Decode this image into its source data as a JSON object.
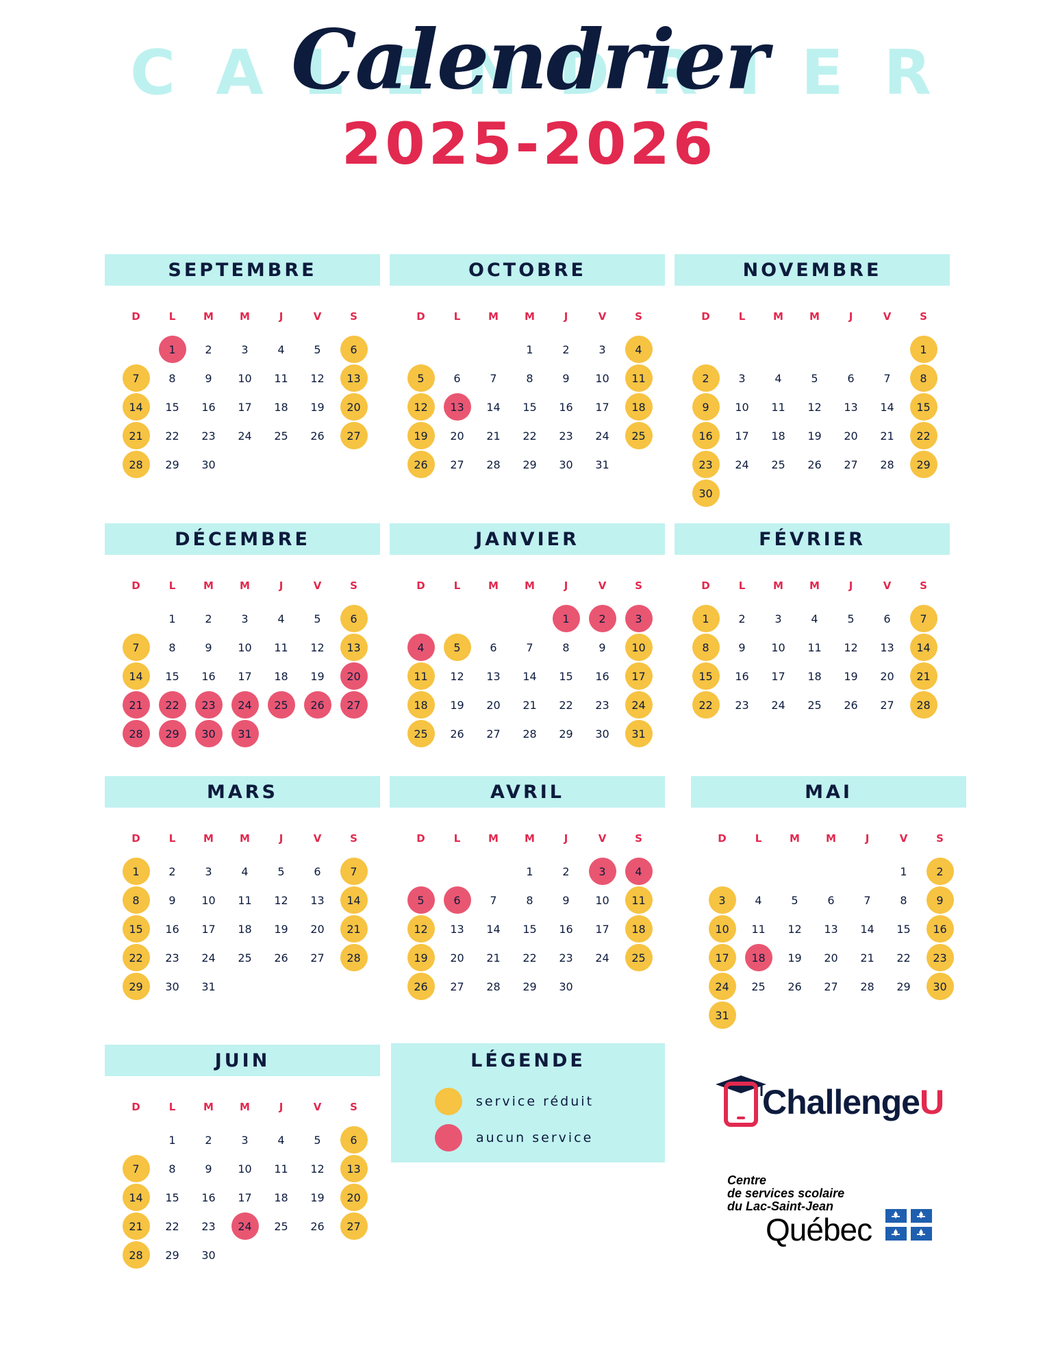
{
  "header": {
    "background_word": "CALENDRIER",
    "script_title": "Calendrier",
    "year": "2025-2026"
  },
  "weekdays": [
    "D",
    "L",
    "M",
    "M",
    "J",
    "V",
    "S"
  ],
  "colors": {
    "reduced": "#f6c342",
    "none": "#e95672",
    "accent": "#e2294f",
    "header_bg": "#c0f2f0",
    "text": "#0d1b3d"
  },
  "months": [
    {
      "name": "SEPTEMBRE",
      "start": 1,
      "days": 30,
      "reduced": [
        6,
        7,
        13,
        14,
        20,
        21,
        27,
        28
      ],
      "none": [
        1
      ]
    },
    {
      "name": "OCTOBRE",
      "start": 3,
      "days": 31,
      "reduced": [
        4,
        5,
        11,
        12,
        18,
        19,
        25,
        26
      ],
      "none": [
        13
      ]
    },
    {
      "name": "NOVEMBRE",
      "start": 6,
      "days": 30,
      "reduced": [
        1,
        2,
        8,
        9,
        15,
        16,
        22,
        23,
        29,
        30
      ],
      "none": []
    },
    {
      "name": "DÉCEMBRE",
      "start": 1,
      "days": 31,
      "reduced": [
        6,
        7,
        13,
        14
      ],
      "none": [
        20,
        21,
        22,
        23,
        24,
        25,
        26,
        27,
        28,
        29,
        30,
        31
      ]
    },
    {
      "name": "JANVIER",
      "start": 4,
      "days": 31,
      "reduced": [
        5,
        10,
        11,
        17,
        18,
        24,
        25,
        31
      ],
      "none": [
        1,
        2,
        3,
        4
      ]
    },
    {
      "name": "FÉVRIER",
      "start": 0,
      "days": 28,
      "reduced": [
        1,
        7,
        8,
        14,
        15,
        21,
        22,
        28
      ],
      "none": []
    },
    {
      "name": "MARS",
      "start": 0,
      "days": 31,
      "reduced": [
        1,
        7,
        8,
        14,
        15,
        21,
        22,
        28,
        29
      ],
      "none": []
    },
    {
      "name": "AVRIL",
      "start": 3,
      "days": 30,
      "reduced": [
        11,
        12,
        18,
        19,
        25,
        26
      ],
      "none": [
        3,
        4,
        5,
        6
      ]
    },
    {
      "name": "MAI",
      "start": 5,
      "days": 31,
      "reduced": [
        2,
        3,
        9,
        10,
        16,
        17,
        23,
        24,
        30,
        31
      ],
      "none": [
        18
      ]
    },
    {
      "name": "JUIN",
      "start": 1,
      "days": 30,
      "reduced": [
        6,
        7,
        13,
        14,
        20,
        21,
        27,
        28
      ],
      "none": [
        24
      ]
    }
  ],
  "legend": {
    "title": "LÉGENDE",
    "reduced_label": "service réduit",
    "none_label": "aucun service"
  },
  "logos": {
    "challengeu_main": "Challenge",
    "challengeu_accent": "U",
    "css_line1": "Centre",
    "css_line2": "de services scolaire",
    "css_line3": "du Lac-Saint-Jean",
    "quebec": "Québec",
    "phone_icon": "phone-graduation-cap-icon",
    "flag_icon": "quebec-fleur-de-lis-flag-icon"
  }
}
